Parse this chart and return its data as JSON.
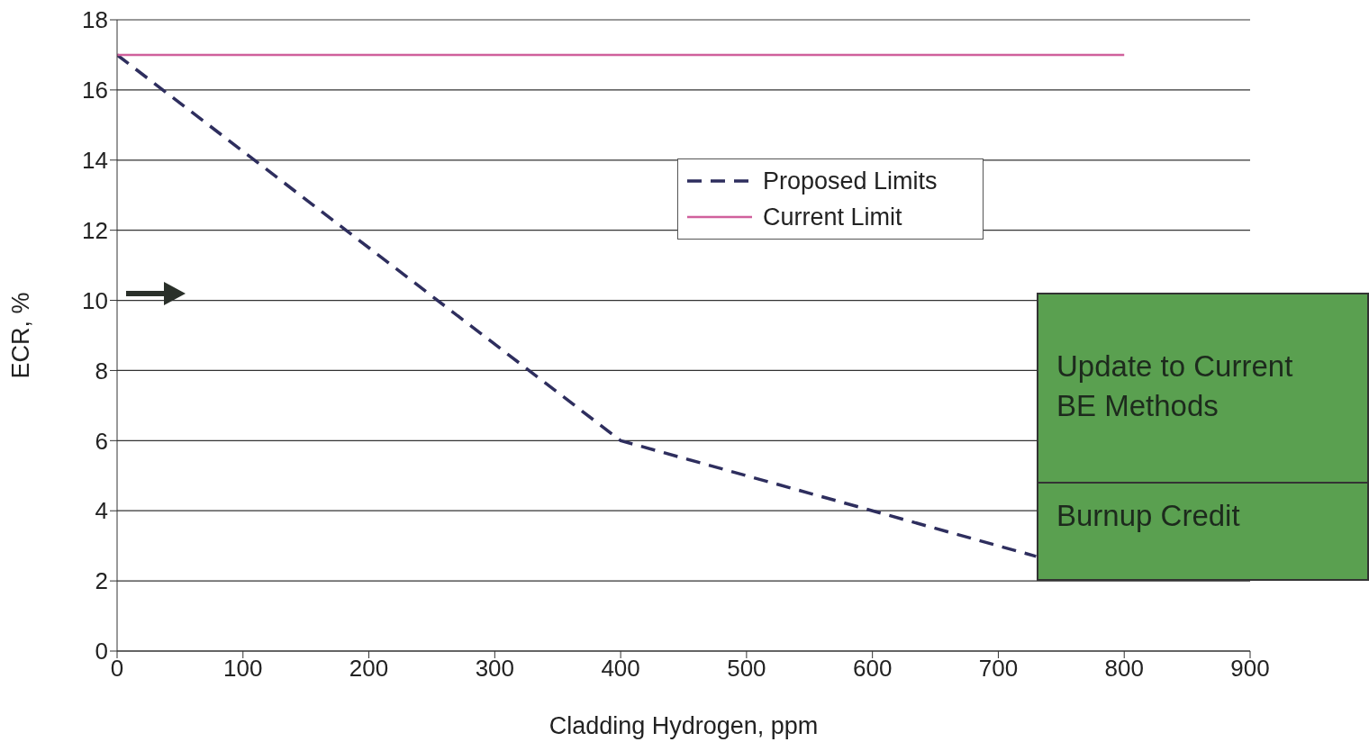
{
  "chart_data": {
    "type": "line",
    "xlabel": "Cladding Hydrogen, ppm",
    "ylabel": "ECR, %",
    "series": [
      {
        "name": "Proposed Limits",
        "color": "#2e2e5e",
        "line_style": "dashed",
        "x": [
          0,
          400,
          730
        ],
        "values": [
          17,
          6,
          2.7
        ]
      },
      {
        "name": "Current Limit",
        "color": "#d0609c",
        "line_style": "solid",
        "x": [
          0,
          800
        ],
        "values": [
          17,
          17
        ]
      }
    ],
    "xlim": [
      0,
      900
    ],
    "xticks": [
      0,
      100,
      200,
      300,
      400,
      500,
      600,
      700,
      800,
      900
    ],
    "ylim": [
      0,
      18
    ],
    "yticks": [
      0,
      2,
      4,
      6,
      8,
      10,
      12,
      14,
      16,
      18
    ],
    "grid": "y",
    "legend": "top",
    "marker": "none",
    "annotations": [
      "Update to Current BE Methods",
      "Burnup Credit"
    ]
  }
}
